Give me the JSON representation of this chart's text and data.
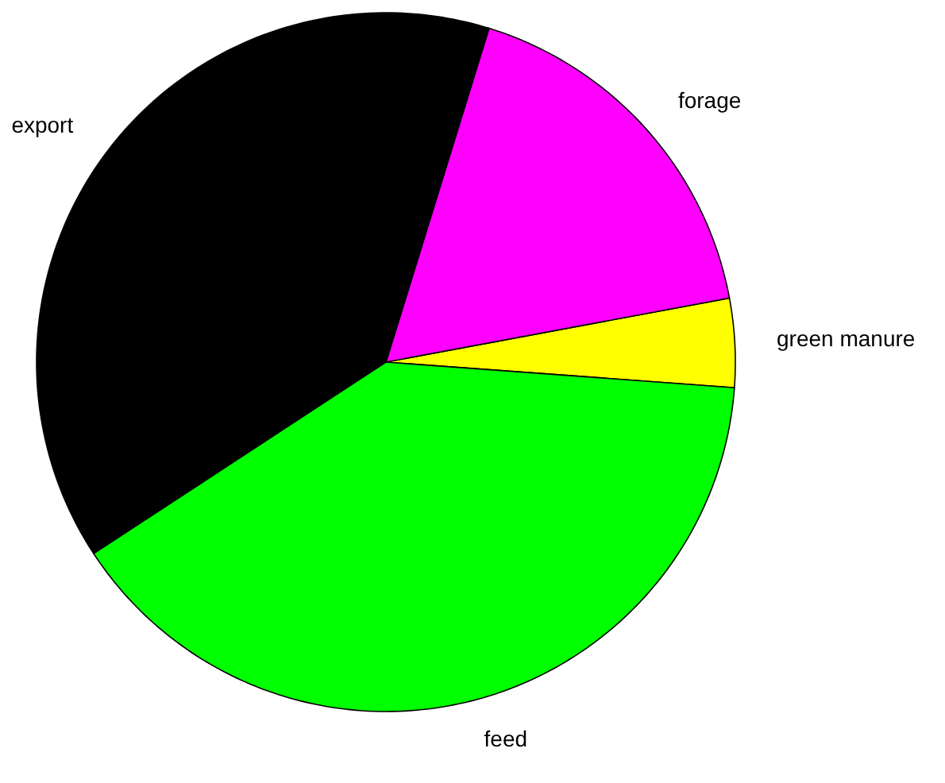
{
  "chart_data": {
    "type": "pie",
    "categories": [
      "green manure",
      "forage",
      "export",
      "feed"
    ],
    "values": [
      4.1,
      17.3,
      39.0,
      39.6
    ],
    "colors": [
      "#ffff00",
      "#ff00ff",
      "#000000",
      "#00ff00"
    ]
  }
}
